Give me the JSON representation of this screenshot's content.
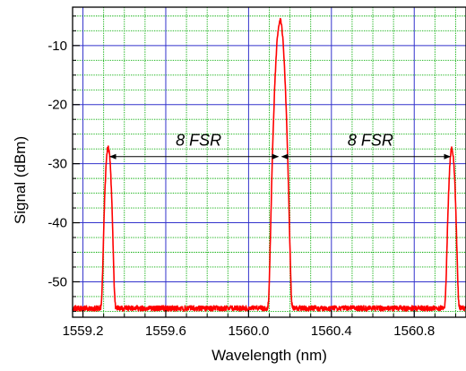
{
  "chart_data": {
    "type": "line",
    "title": "",
    "xlabel": "Wavelength (nm)",
    "ylabel": "Signal (dBm)",
    "xlim": [
      1559.15,
      1561.05
    ],
    "ylim": [
      -56,
      -3.5
    ],
    "x_ticks": [
      {
        "value": 1559.2,
        "label": "1559.2"
      },
      {
        "value": 1559.6,
        "label": "1559.6"
      },
      {
        "value": 1560.0,
        "label": "1560.0"
      },
      {
        "value": 1560.4,
        "label": "1560.4"
      },
      {
        "value": 1560.8,
        "label": "1560.8"
      }
    ],
    "y_ticks": [
      {
        "value": -10,
        "label": "-10"
      },
      {
        "value": -20,
        "label": "-20"
      },
      {
        "value": -30,
        "label": "-30"
      },
      {
        "value": -40,
        "label": "-40"
      },
      {
        "value": -50,
        "label": "-50"
      }
    ],
    "grid": {
      "major": true,
      "minor": true
    },
    "series": [
      {
        "color": "#ff0000",
        "noise_floor_dbm": -54.5,
        "peaks": [
          {
            "center_nm": 1559.322,
            "peak_dbm": -27.3,
            "fwhm_nm": 0.012
          },
          {
            "center_nm": 1560.152,
            "peak_dbm": -5.8,
            "fwhm_nm": 0.016
          },
          {
            "center_nm": 1560.982,
            "peak_dbm": -27.4,
            "fwhm_nm": 0.012
          }
        ]
      }
    ],
    "annotations": [
      {
        "text": "8 FSR",
        "from_nm": 1559.322,
        "to_nm": 1560.152,
        "at_dbm": -28.8
      },
      {
        "text": "8 FSR",
        "from_nm": 1560.152,
        "to_nm": 1560.982,
        "at_dbm": -28.8
      }
    ],
    "colors": {
      "major_grid": "#3333cc",
      "minor_grid": "#00aa00",
      "trace": "#ff0000",
      "arrow": "#000000"
    }
  }
}
